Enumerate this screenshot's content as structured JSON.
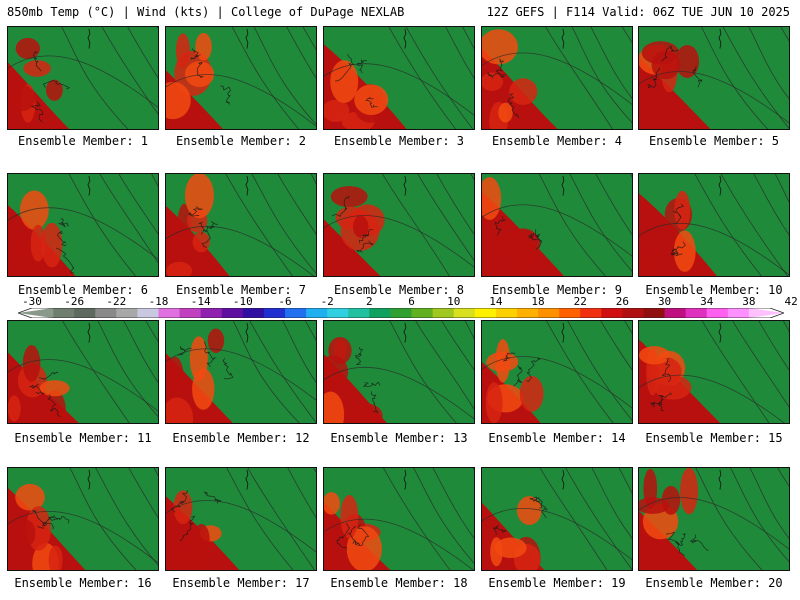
{
  "header": {
    "left_title": "850mb Temp (°C) | Wind (kts) | College of DuPage NEXLAB",
    "right_title": "12Z GEFS | F114 Valid: 06Z TUE JUN 10 2025"
  },
  "members": [
    {
      "label": "Ensemble Member: 1"
    },
    {
      "label": "Ensemble Member: 2"
    },
    {
      "label": "Ensemble Member: 3"
    },
    {
      "label": "Ensemble Member: 4"
    },
    {
      "label": "Ensemble Member: 5"
    },
    {
      "label": "Ensemble Member: 6"
    },
    {
      "label": "Ensemble Member: 7"
    },
    {
      "label": "Ensemble Member: 8"
    },
    {
      "label": "Ensemble Member: 9"
    },
    {
      "label": "Ensemble Member: 10"
    },
    {
      "label": "Ensemble Member: 11"
    },
    {
      "label": "Ensemble Member: 12"
    },
    {
      "label": "Ensemble Member: 13"
    },
    {
      "label": "Ensemble Member: 14"
    },
    {
      "label": "Ensemble Member: 15"
    },
    {
      "label": "Ensemble Member: 16"
    },
    {
      "label": "Ensemble Member: 17"
    },
    {
      "label": "Ensemble Member: 18"
    },
    {
      "label": "Ensemble Member: 19"
    },
    {
      "label": "Ensemble Member: 20"
    }
  ],
  "colorbar": {
    "labels": [
      "-30",
      "-26",
      "-22",
      "-18",
      "-14",
      "-10",
      "-6",
      "-2",
      "2",
      "6",
      "10",
      "14",
      "18",
      "22",
      "26",
      "30",
      "34",
      "38",
      "42"
    ],
    "colors": [
      "#8a9a8a",
      "#707e70",
      "#5e6a60",
      "#8a8a8a",
      "#a8a8a8",
      "#c8c8e0",
      "#e070e0",
      "#c040c0",
      "#9020b0",
      "#6010a0",
      "#3010a0",
      "#2030d0",
      "#2070f0",
      "#20b0f0",
      "#30d0e0",
      "#20c0a0",
      "#10a060",
      "#30a030",
      "#60b020",
      "#a0c820",
      "#d8e020",
      "#fff000",
      "#ffd000",
      "#ffb000",
      "#ff9000",
      "#ff6000",
      "#f03010",
      "#d01010",
      "#b01010",
      "#901010",
      "#c01080",
      "#e030c0",
      "#ff60f0",
      "#ff90ff",
      "#ffc0ff"
    ],
    "field_colors": [
      "#1f8a3a",
      "#2e9a30",
      "#58ad24",
      "#8ec41e",
      "#c9dc1a",
      "#f3e61a",
      "#ffcc00",
      "#ffaa00",
      "#ff8c00",
      "#ff6a00",
      "#f24a10",
      "#d72412",
      "#b8100e"
    ]
  }
}
